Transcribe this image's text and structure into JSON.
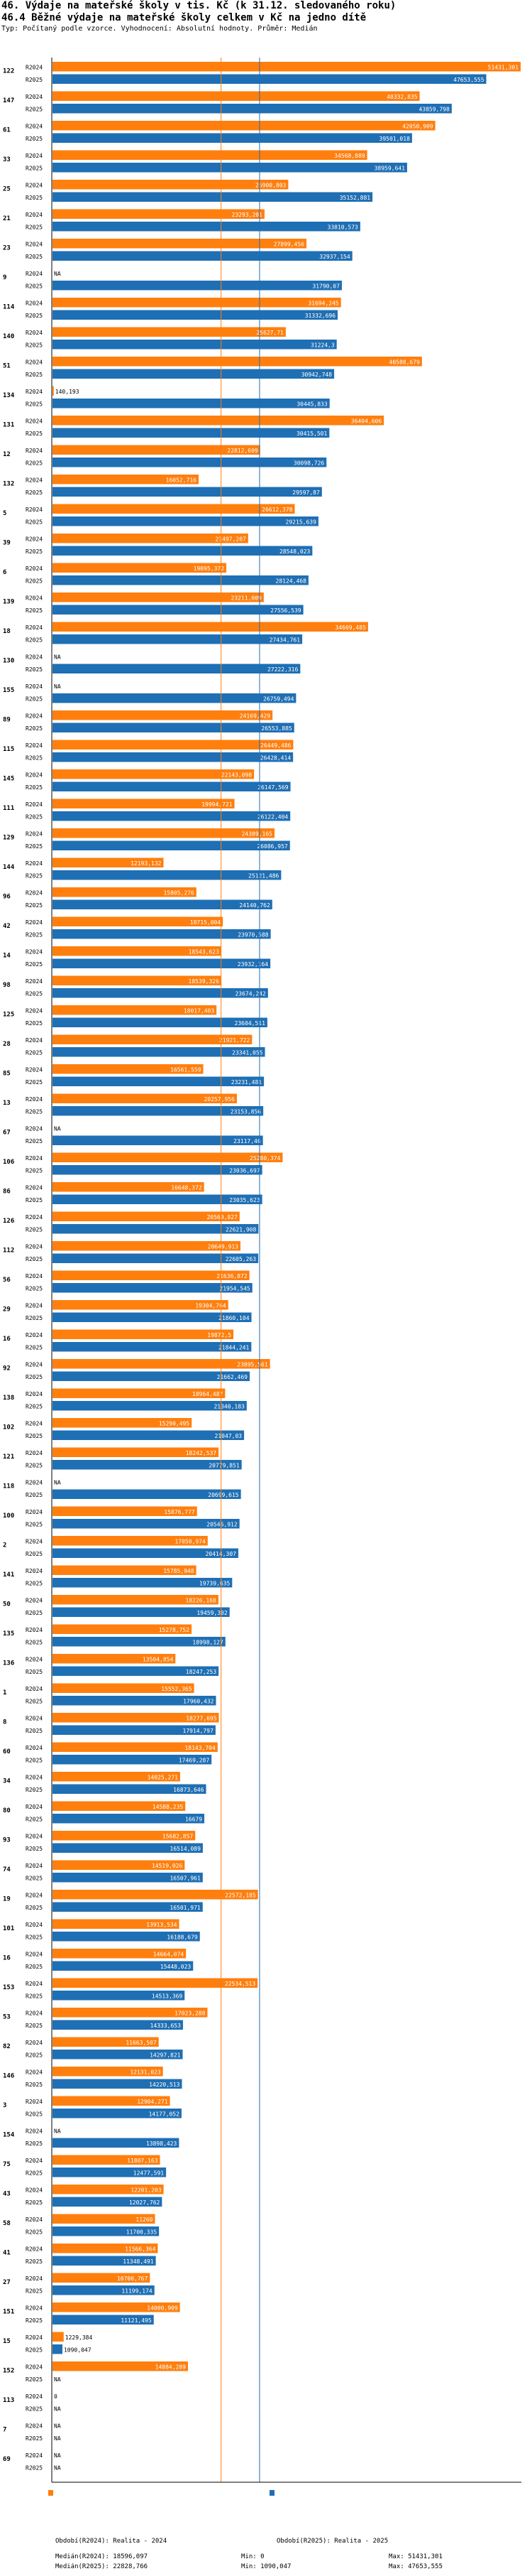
{
  "header": {
    "title": "46. Výdaje na mateřské školy v tis. Kč (k 31.12. sledovaného roku)",
    "subtitle": "46.4 Běžné výdaje na mateřské školy celkem v Kč na jedno dítě",
    "meta": "Typ: Počítaný podle vzorce. Vyhodnocení: Absolutní hodnoty. Průměr: Medián"
  },
  "footer": {
    "period_2024": "Období(R2024): Realita - 2024",
    "period_2025": "Období(R2025): Realita - 2025",
    "median_2024": "Medián(R2024): 18596,097",
    "median_2025": "Medián(R2025): 22828,766",
    "min_2024": "Min: 0",
    "min_2025": "Min: 1090,047",
    "max_2024": "Max: 51431,301",
    "max_2025": "Max: 47653,555"
  },
  "chart_data": {
    "type": "bar",
    "orientation": "horizontal",
    "title": "46.4 Běžné výdaje na mateřské školy celkem v Kč na jedno dítě",
    "xlim": [
      0,
      51431.301
    ],
    "series_names": [
      "R2024",
      "R2025"
    ],
    "colors": {
      "R2024": "#ff7f0e",
      "R2025": "#1f6fb4",
      "median_2024": "#ff7f0e",
      "median_2025": "#1f6fb4"
    },
    "na_label": "NA",
    "medians": {
      "R2024": 18596.097,
      "R2025": 22828.766
    },
    "groups": [
      {
        "id": "122",
        "R2024": "51431,301",
        "R2025": "47653,555"
      },
      {
        "id": "147",
        "R2024": "40332,835",
        "R2025": "43859,798"
      },
      {
        "id": "61",
        "R2024": "42050,909",
        "R2025": "39501,018"
      },
      {
        "id": "33",
        "R2024": "34568,889",
        "R2025": "38959,641"
      },
      {
        "id": "25",
        "R2024": "25900,803",
        "R2025": "35152,881"
      },
      {
        "id": "21",
        "R2024": "23293,201",
        "R2025": "33810,573"
      },
      {
        "id": "23",
        "R2024": "27899,456",
        "R2025": "32937,154"
      },
      {
        "id": "9",
        "R2024": "NA",
        "R2025": "31790,07"
      },
      {
        "id": "114",
        "R2024": "31694,245",
        "R2025": "31332,696"
      },
      {
        "id": "140",
        "R2024": "25627,71",
        "R2025": "31224,3"
      },
      {
        "id": "51",
        "R2024": "40588,679",
        "R2025": "30942,748"
      },
      {
        "id": "134",
        "R2024": "140,193",
        "R2025": "30445,833"
      },
      {
        "id": "131",
        "R2024": "36404,606",
        "R2025": "30415,501"
      },
      {
        "id": "12",
        "R2024": "22812,609",
        "R2025": "30098,726"
      },
      {
        "id": "132",
        "R2024": "16052,716",
        "R2025": "29597,87"
      },
      {
        "id": "5",
        "R2024": "26612,378",
        "R2025": "29215,639"
      },
      {
        "id": "39",
        "R2024": "21497,207",
        "R2025": "28548,023"
      },
      {
        "id": "6",
        "R2024": "19095,372",
        "R2025": "28124,468"
      },
      {
        "id": "139",
        "R2024": "23211,009",
        "R2025": "27556,539"
      },
      {
        "id": "18",
        "R2024": "34669,485",
        "R2025": "27434,761"
      },
      {
        "id": "130",
        "R2024": "NA",
        "R2025": "27222,316"
      },
      {
        "id": "155",
        "R2024": "NA",
        "R2025": "26759,494"
      },
      {
        "id": "89",
        "R2024": "24169,429",
        "R2025": "26553,885"
      },
      {
        "id": "115",
        "R2024": "26449,486",
        "R2025": "26428,414"
      },
      {
        "id": "145",
        "R2024": "22143,098",
        "R2025": "26147,569"
      },
      {
        "id": "111",
        "R2024": "19994,721",
        "R2025": "26122,404"
      },
      {
        "id": "129",
        "R2024": "24389,165",
        "R2025": "26086,957"
      },
      {
        "id": "144",
        "R2024": "12193,132",
        "R2025": "25121,486"
      },
      {
        "id": "96",
        "R2024": "15805,276",
        "R2025": "24140,762"
      },
      {
        "id": "42",
        "R2024": "18715,004",
        "R2025": "23970,588"
      },
      {
        "id": "14",
        "R2024": "18543,623",
        "R2025": "23932,164"
      },
      {
        "id": "98",
        "R2024": "18539,326",
        "R2025": "23674,242"
      },
      {
        "id": "125",
        "R2024": "18017,403",
        "R2025": "23604,511"
      },
      {
        "id": "28",
        "R2024": "21921,722",
        "R2025": "23341,055"
      },
      {
        "id": "85",
        "R2024": "16561,559",
        "R2025": "23231,481"
      },
      {
        "id": "13",
        "R2024": "20257,956",
        "R2025": "23153,856"
      },
      {
        "id": "67",
        "R2024": "NA",
        "R2025": "23117,46"
      },
      {
        "id": "106",
        "R2024": "25280,374",
        "R2025": "23036,697"
      },
      {
        "id": "86",
        "R2024": "16648,372",
        "R2025": "23035,623"
      },
      {
        "id": "126",
        "R2024": "20560,827",
        "R2025": "22621,908"
      },
      {
        "id": "112",
        "R2024": "20649,913",
        "R2025": "22605,263"
      },
      {
        "id": "56",
        "R2024": "21636,872",
        "R2025": "21954,545"
      },
      {
        "id": "29",
        "R2024": "19304,764",
        "R2025": "21860,104"
      },
      {
        "id": "16",
        "R2024": "19872,5",
        "R2025": "21844,241"
      },
      {
        "id": "92",
        "R2024": "23895,561",
        "R2025": "21662,469"
      },
      {
        "id": "138",
        "R2024": "18964,487",
        "R2025": "21340,183"
      },
      {
        "id": "102",
        "R2024": "15290,495",
        "R2025": "21047,03"
      },
      {
        "id": "121",
        "R2024": "18242,537",
        "R2025": "20779,851"
      },
      {
        "id": "118",
        "R2024": "NA",
        "R2025": "20699,615"
      },
      {
        "id": "100",
        "R2024": "15876,777",
        "R2025": "20546,912"
      },
      {
        "id": "2",
        "R2024": "17050,974",
        "R2025": "20414,307"
      },
      {
        "id": "141",
        "R2024": "15785,948",
        "R2025": "19739,635"
      },
      {
        "id": "50",
        "R2024": "18226,168",
        "R2025": "19459,302"
      },
      {
        "id": "135",
        "R2024": "15278,752",
        "R2025": "18998,127"
      },
      {
        "id": "136",
        "R2024": "13504,854",
        "R2025": "18247,253"
      },
      {
        "id": "1",
        "R2024": "15552,365",
        "R2025": "17960,432"
      },
      {
        "id": "8",
        "R2024": "18277,695",
        "R2025": "17914,797"
      },
      {
        "id": "60",
        "R2024": "18143,704",
        "R2025": "17469,287"
      },
      {
        "id": "34",
        "R2024": "14025,271",
        "R2025": "16873,646"
      },
      {
        "id": "80",
        "R2024": "14588,235",
        "R2025": "16679"
      },
      {
        "id": "93",
        "R2024": "15682,857",
        "R2025": "16514,089"
      },
      {
        "id": "74",
        "R2024": "14519,026",
        "R2025": "16507,961"
      },
      {
        "id": "19",
        "R2024": "22572,185",
        "R2025": "16501,971"
      },
      {
        "id": "101",
        "R2024": "13913,534",
        "R2025": "16188,679"
      },
      {
        "id": "16b",
        "label": "16",
        "R2024": "14664,074",
        "R2025": "15448,023"
      },
      {
        "id": "153",
        "R2024": "22534,513",
        "R2025": "14513,369"
      },
      {
        "id": "53",
        "R2024": "17023,288",
        "R2025": "14333,653"
      },
      {
        "id": "82",
        "R2024": "11663,507",
        "R2025": "14297,821"
      },
      {
        "id": "146",
        "R2024": "12131,023",
        "R2025": "14220,513"
      },
      {
        "id": "3",
        "R2024": "12904,271",
        "R2025": "14177,052"
      },
      {
        "id": "154",
        "R2024": "NA",
        "R2025": "13898,423"
      },
      {
        "id": "75",
        "R2024": "11807,163",
        "R2025": "12477,591"
      },
      {
        "id": "43",
        "R2024": "12201,203",
        "R2025": "12027,762"
      },
      {
        "id": "58",
        "R2024": "11260",
        "R2025": "11700,335"
      },
      {
        "id": "41",
        "R2024": "11566,364",
        "R2025": "11348,491"
      },
      {
        "id": "27",
        "R2024": "10700,767",
        "R2025": "11199,174"
      },
      {
        "id": "151",
        "R2024": "14000,909",
        "R2025": "11121,495"
      },
      {
        "id": "15",
        "R2024": "1229,384",
        "R2025": "1090,047"
      },
      {
        "id": "152",
        "R2024": "14884,289",
        "R2025": "NA"
      },
      {
        "id": "113",
        "R2024": "0",
        "R2025": "NA"
      },
      {
        "id": "7",
        "R2024": "NA",
        "R2025": "NA"
      },
      {
        "id": "69",
        "R2024": "NA",
        "R2025": "NA"
      }
    ]
  }
}
